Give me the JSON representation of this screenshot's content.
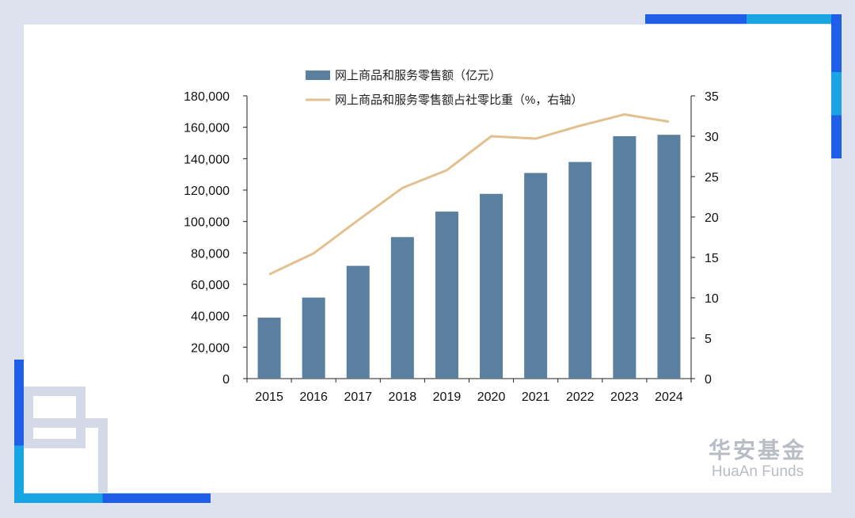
{
  "brand": {
    "name_cn": "华安基金",
    "name_en": "HuaAn Funds"
  },
  "colors": {
    "page_bg": "#dde2ee",
    "bar": "#5b7f9e",
    "line": "#e2c08f",
    "accent_blue": "#1f5ee8",
    "accent_cyan": "#19a4e3"
  },
  "chart_data": {
    "type": "bar",
    "categories": [
      "2015",
      "2016",
      "2017",
      "2018",
      "2019",
      "2020",
      "2021",
      "2022",
      "2023",
      "2024"
    ],
    "series": [
      {
        "name": "网上商品和服务零售额（亿元）",
        "type": "bar",
        "axis": "left",
        "values": [
          38800,
          51600,
          71800,
          90100,
          106300,
          117600,
          130900,
          137900,
          154300,
          155200
        ]
      },
      {
        "name": "网上商品和服务零售额占社零比重（%，右轴）",
        "type": "line",
        "axis": "right",
        "values": [
          12.9,
          15.5,
          19.6,
          23.6,
          25.8,
          30.0,
          29.7,
          31.3,
          32.7,
          31.8
        ]
      }
    ],
    "y_left": {
      "ylim": [
        0,
        180000
      ],
      "ticks": [
        "0",
        "20,000",
        "40,000",
        "60,000",
        "80,000",
        "100,000",
        "120,000",
        "140,000",
        "160,000",
        "180,000"
      ]
    },
    "y_right": {
      "ylim": [
        0,
        35
      ],
      "ticks": [
        "0",
        "5",
        "10",
        "15",
        "20",
        "25",
        "30",
        "35"
      ]
    },
    "legend_position": "top",
    "grid": false
  }
}
